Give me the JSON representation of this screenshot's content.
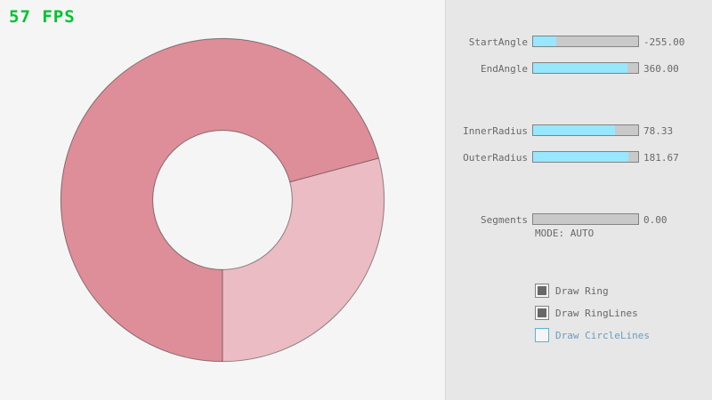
{
  "fps": {
    "label": "57 FPS",
    "color": "#00C52F"
  },
  "ring": {
    "light_color": "#EBBCC3",
    "dark_color": "#DE8E99",
    "outline_color": "rgba(0,0,0,0.42)"
  },
  "panel": {
    "sliders": [
      {
        "label": "StartAngle",
        "value": "-255.00",
        "fill_pct": 21.7
      },
      {
        "label": "EndAngle",
        "value": "360.00",
        "fill_pct": 90
      },
      {
        "label": "InnerRadius",
        "value": "78.33",
        "fill_pct": 78.3
      },
      {
        "label": "OuterRadius",
        "value": "181.67",
        "fill_pct": 90.8
      },
      {
        "label": "Segments",
        "value": "0.00",
        "fill_pct": 0
      }
    ],
    "mode_text": "MODE: AUTO",
    "checkboxes": [
      {
        "label": "Draw Ring",
        "checked": true
      },
      {
        "label": "Draw RingLines",
        "checked": true
      },
      {
        "label": "Draw CircleLines",
        "checked": false
      }
    ]
  }
}
